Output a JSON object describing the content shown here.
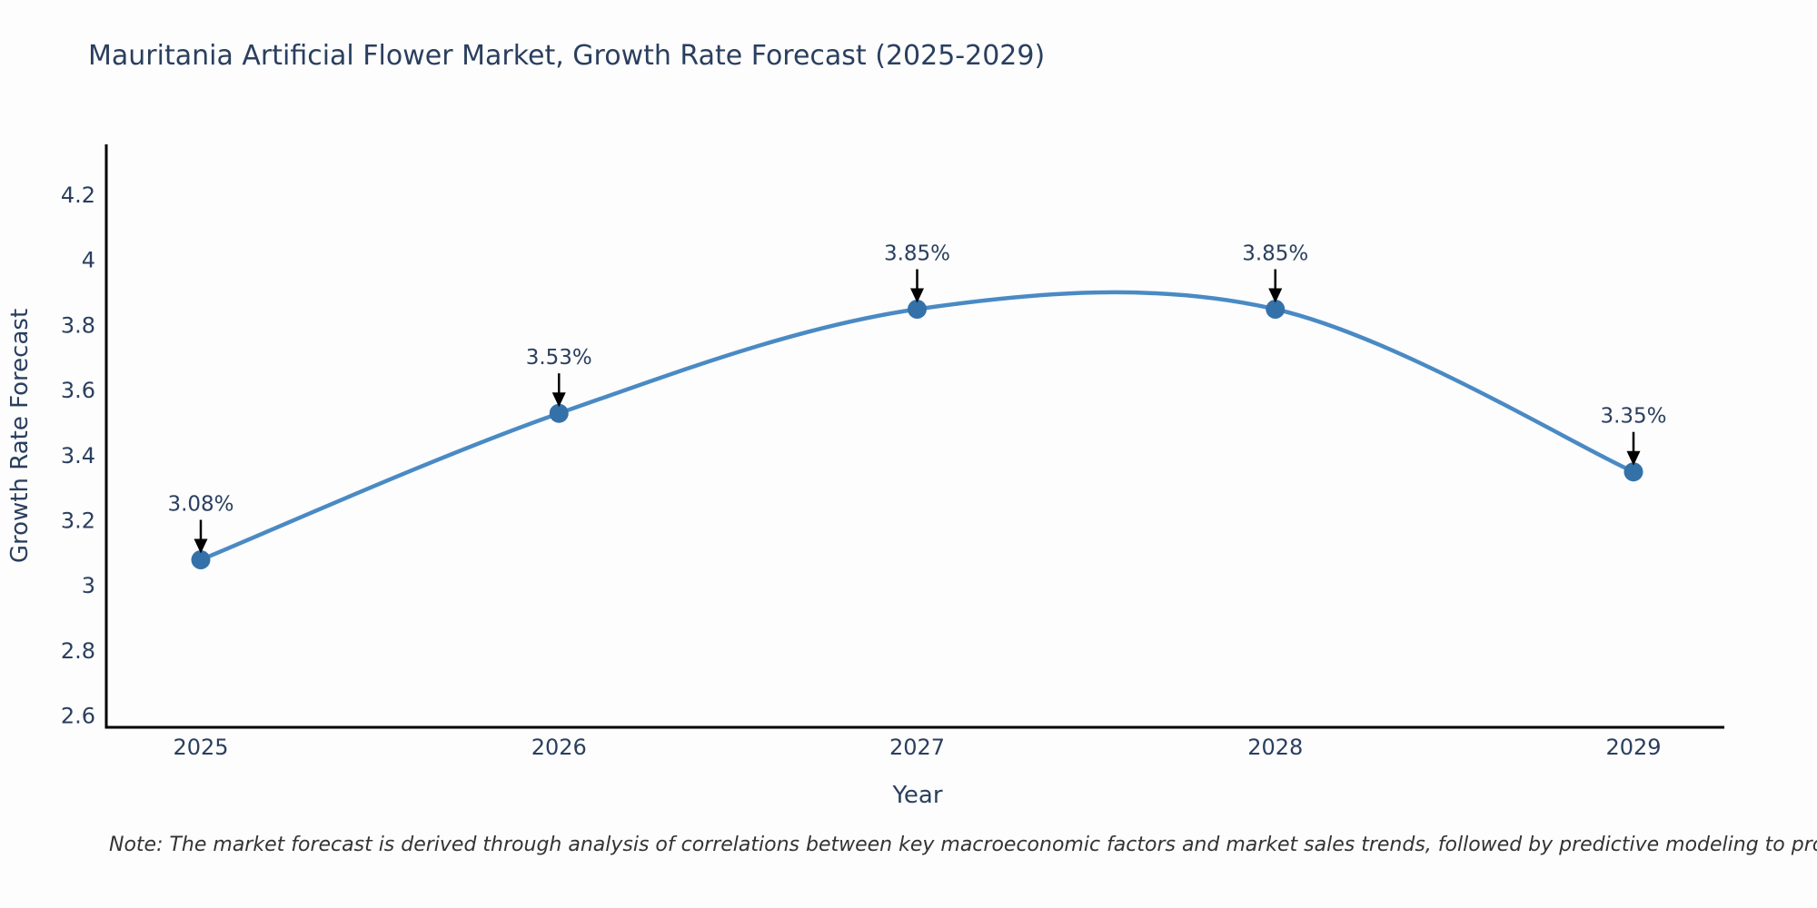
{
  "title": "Mauritania Artificial Flower Market, Growth Rate Forecast (2025-2029)",
  "note": "Note: The market forecast is derived through analysis of correlations between key macroeconomic factors and market sales trends, followed by predictive modeling to project future sales",
  "chart_data": {
    "type": "line",
    "title": "Mauritania Artificial Flower Market, Growth Rate Forecast (2025-2029)",
    "xlabel": "Year",
    "ylabel": "Growth Rate Forecast",
    "categories": [
      "2025",
      "2026",
      "2027",
      "2028",
      "2029"
    ],
    "values": [
      3.08,
      3.53,
      3.85,
      3.85,
      3.35
    ],
    "point_labels": [
      "3.08%",
      "3.53%",
      "3.85%",
      "3.85%",
      "3.35%"
    ],
    "yticks": [
      2.6,
      2.8,
      3,
      3.2,
      3.4,
      3.6,
      3.8,
      4,
      4.2
    ],
    "ylim": [
      2.57,
      4.35
    ],
    "line_shape": "spline",
    "grid": false,
    "legend": "none",
    "colors": {
      "line": "#4a8ac4",
      "marker": "#3571a9",
      "text": "#2a3f5f",
      "axis_line": "#000000",
      "arrow": "#000000",
      "background": "#fdfdfd"
    }
  }
}
